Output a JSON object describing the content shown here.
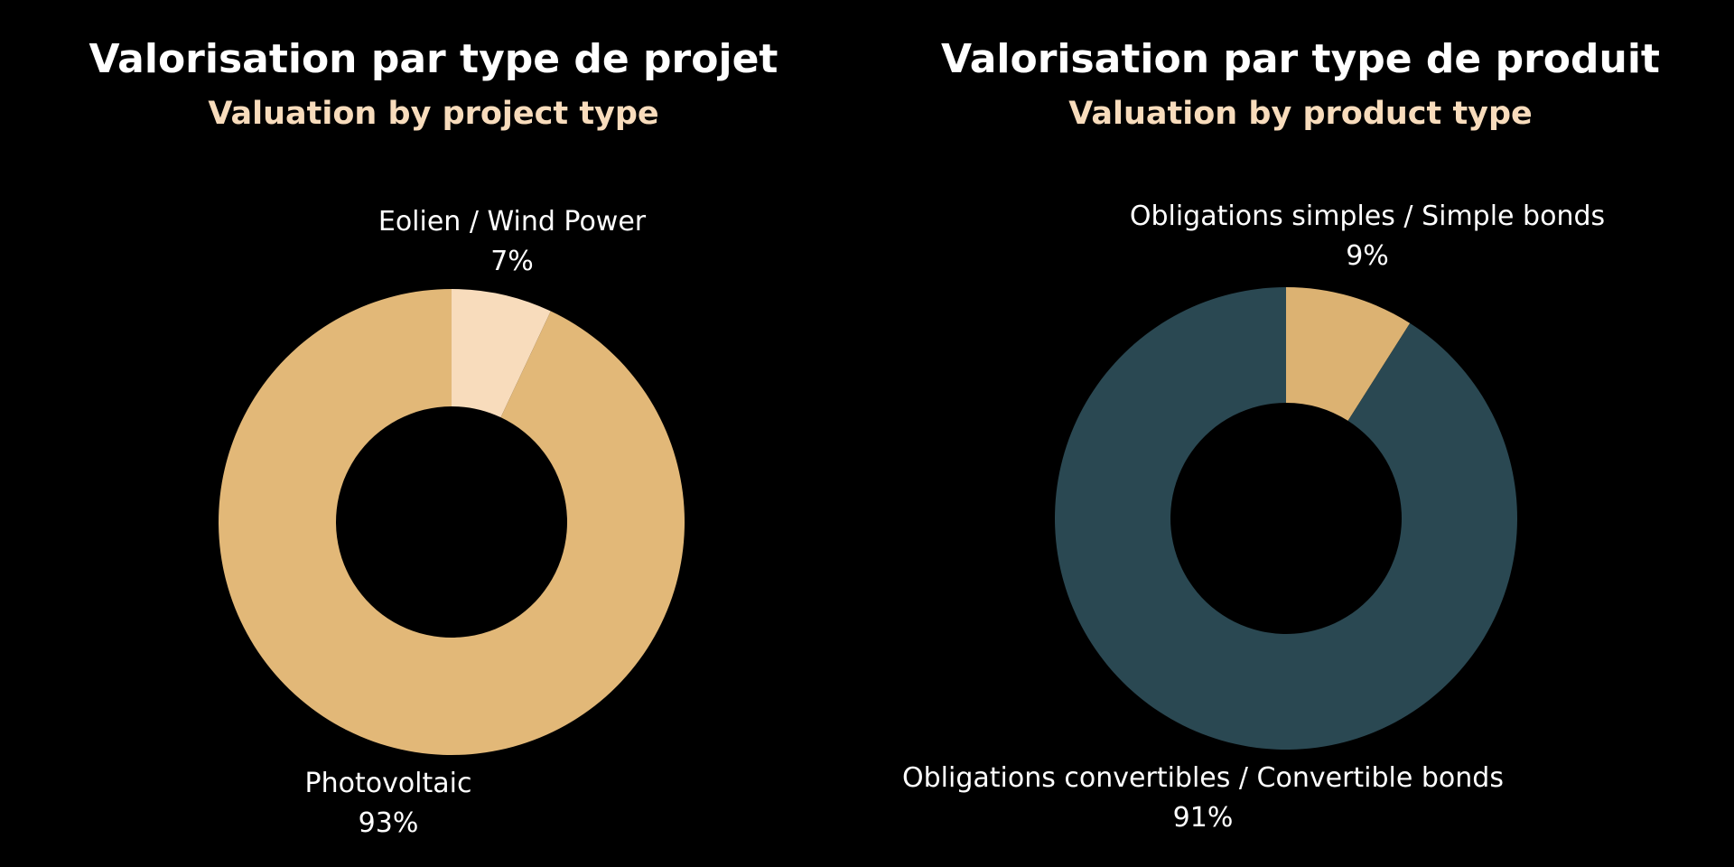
{
  "colors": {
    "background": "#000000",
    "subtitle": "#f8dcbc"
  },
  "chart_data": [
    {
      "type": "pie",
      "donut": true,
      "title": "Valorisation par type de projet",
      "subtitle": "Valuation by project type",
      "slices": [
        {
          "label": "Eolien / Wind Power",
          "value": 7,
          "value_label": "7%",
          "color": "#f8dcbc"
        },
        {
          "label": "Photovoltaic",
          "value": 93,
          "value_label": "93%",
          "color": "#e2b878"
        }
      ]
    },
    {
      "type": "pie",
      "donut": true,
      "title": "Valorisation par type de produit",
      "subtitle": "Valuation by product type",
      "slices": [
        {
          "label": "Obligations simples / Simple bonds",
          "value": 9,
          "value_label": "9%",
          "color": "#dcb272"
        },
        {
          "label": "Obligations convertibles / Convertible bonds",
          "value": 91,
          "value_label": "91%",
          "color": "#2a4852"
        }
      ]
    }
  ]
}
